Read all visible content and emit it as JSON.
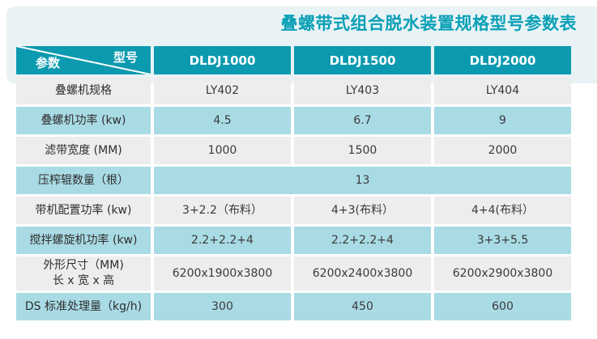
{
  "title": "叠螺带式组合脱水装置规格型号参数表",
  "colors": {
    "teal_header": "#0C9AB0",
    "title_teal": "#0AA0B6",
    "row_light_blue": "#A9DBE5",
    "row_gray": "#EDEDED",
    "top_band": "#E9F3F6"
  },
  "table": {
    "corner": {
      "param_label": "参数",
      "model_label": "型号"
    },
    "columns": [
      "DLDJ1000",
      "DLDJ1500",
      "DLDJ2000"
    ],
    "rows": [
      {
        "label": "叠螺机规格",
        "values": [
          "LY402",
          "LY403",
          "LY404"
        ]
      },
      {
        "label": "叠螺机功率 (kw)",
        "values": [
          "4.5",
          "6.7",
          "9"
        ]
      },
      {
        "label": "滤带宽度 (MM)",
        "values": [
          "1000",
          "1500",
          "2000"
        ]
      },
      {
        "label": "压榨辊数量（根）",
        "values": [
          "13"
        ],
        "colspan": 3
      },
      {
        "label": "带机配置功率 (kw)",
        "values": [
          "3+2.2（布料）",
          "4+3(布料）",
          "4+4(布料）"
        ]
      },
      {
        "label": "搅拌螺旋机功率 (kw)",
        "values": [
          "2.2+2.2+4",
          "2.2+2.2+4",
          "3+3+5.5"
        ]
      },
      {
        "label": "外形尺寸（MM)\n长 x 宽 x 高",
        "values": [
          "6200x1900x3800",
          "6200x2400x3800",
          "6200x2900x3800"
        ]
      },
      {
        "label": "DS 标准处理量（kg/h)",
        "values": [
          "300",
          "450",
          "600"
        ]
      }
    ]
  }
}
